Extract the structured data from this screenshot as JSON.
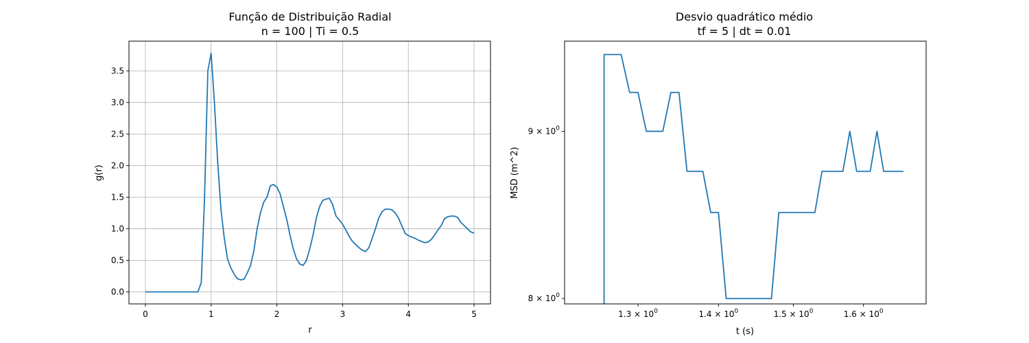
{
  "chart_data": [
    {
      "type": "line",
      "title": "Função de Distribuição Radial",
      "subtitle": "n = 100 | Ti = 0.5",
      "xlabel": "r",
      "ylabel": "g(r)",
      "xlim": [
        -0.25,
        5.25
      ],
      "ylim": [
        -0.19,
        3.97
      ],
      "xticks": [
        0,
        1,
        2,
        3,
        4,
        5
      ],
      "xtick_labels": [
        "0",
        "1",
        "2",
        "3",
        "4",
        "5"
      ],
      "yticks": [
        0.0,
        0.5,
        1.0,
        1.5,
        2.0,
        2.5,
        3.0,
        3.5
      ],
      "ytick_labels": [
        "0.0",
        "0.5",
        "1.0",
        "1.5",
        "2.0",
        "2.5",
        "3.0",
        "3.5"
      ],
      "grid": true,
      "color": "#1f77b4",
      "x": [
        0,
        0.05,
        0.1,
        0.15,
        0.2,
        0.25,
        0.3,
        0.35,
        0.4,
        0.45,
        0.5,
        0.55,
        0.6,
        0.65,
        0.7,
        0.75,
        0.8,
        0.85,
        0.9,
        0.95,
        1.0,
        1.05,
        1.1,
        1.15,
        1.2,
        1.25,
        1.3,
        1.35,
        1.4,
        1.45,
        1.5,
        1.55,
        1.6,
        1.65,
        1.7,
        1.75,
        1.8,
        1.85,
        1.9,
        1.95,
        2.0,
        2.05,
        2.1,
        2.15,
        2.2,
        2.25,
        2.3,
        2.35,
        2.4,
        2.45,
        2.5,
        2.55,
        2.6,
        2.65,
        2.7,
        2.75,
        2.8,
        2.85,
        2.9,
        2.95,
        3.0,
        3.05,
        3.1,
        3.15,
        3.2,
        3.25,
        3.3,
        3.35,
        3.4,
        3.45,
        3.5,
        3.55,
        3.6,
        3.65,
        3.7,
        3.75,
        3.8,
        3.85,
        3.9,
        3.95,
        4.0,
        4.05,
        4.1,
        4.15,
        4.2,
        4.25,
        4.3,
        4.35,
        4.4,
        4.45,
        4.5,
        4.55,
        4.6,
        4.65,
        4.7,
        4.75,
        4.8,
        4.85,
        4.9,
        4.95,
        5.0
      ],
      "y": [
        0,
        0,
        0,
        0,
        0,
        0,
        0,
        0,
        0,
        0,
        0,
        0,
        0,
        0,
        0,
        0,
        0,
        0.15,
        1.5,
        3.5,
        3.78,
        3.0,
        2.05,
        1.3,
        0.85,
        0.52,
        0.38,
        0.28,
        0.21,
        0.19,
        0.2,
        0.3,
        0.42,
        0.65,
        1.0,
        1.25,
        1.42,
        1.5,
        1.68,
        1.7,
        1.66,
        1.55,
        1.35,
        1.15,
        0.9,
        0.68,
        0.52,
        0.44,
        0.42,
        0.5,
        0.68,
        0.9,
        1.17,
        1.35,
        1.45,
        1.47,
        1.48,
        1.38,
        1.2,
        1.14,
        1.07,
        0.98,
        0.88,
        0.8,
        0.75,
        0.7,
        0.66,
        0.64,
        0.7,
        0.85,
        1.0,
        1.17,
        1.27,
        1.31,
        1.31,
        1.3,
        1.25,
        1.17,
        1.05,
        0.93,
        0.89,
        0.87,
        0.85,
        0.82,
        0.8,
        0.78,
        0.79,
        0.83,
        0.9,
        0.98,
        1.05,
        1.16,
        1.19,
        1.2,
        1.2,
        1.18,
        1.1,
        1.05,
        1.0,
        0.95,
        0.93
      ]
    },
    {
      "type": "line",
      "title": "Desvio quadrático médio",
      "subtitle": "tf = 5 | dt = 0.01",
      "xlabel": "t (s)",
      "ylabel": "MSD (m^2)",
      "xscale": "log",
      "yscale": "log",
      "xlim": [
        1.215,
        1.695
      ],
      "ylim": [
        7.97,
        9.59
      ],
      "xticks": [
        1.3,
        1.4,
        1.5,
        1.6
      ],
      "xtick_labels": [
        "1.3 × 10^0",
        "1.4 × 10^0",
        "1.5 × 10^0",
        "1.6 × 10^0"
      ],
      "yticks": [
        8,
        9
      ],
      "ytick_labels": [
        "8 × 10^0",
        "9 × 10^0"
      ],
      "grid": false,
      "color": "#1f77b4",
      "x": [
        1.26,
        1.26,
        1.28,
        1.29,
        1.3,
        1.31,
        1.33,
        1.34,
        1.35,
        1.36,
        1.38,
        1.39,
        1.4,
        1.41,
        1.47,
        1.48,
        1.53,
        1.54,
        1.57,
        1.58,
        1.59,
        1.61,
        1.62,
        1.63,
        1.66
      ],
      "y": [
        7.9,
        9.5,
        9.5,
        9.25,
        9.25,
        9.0,
        9.0,
        9.25,
        9.25,
        8.75,
        8.75,
        8.5,
        8.5,
        8.0,
        8.0,
        8.5,
        8.5,
        8.75,
        8.75,
        9.0,
        8.75,
        8.75,
        9.0,
        8.75,
        8.75
      ]
    }
  ]
}
